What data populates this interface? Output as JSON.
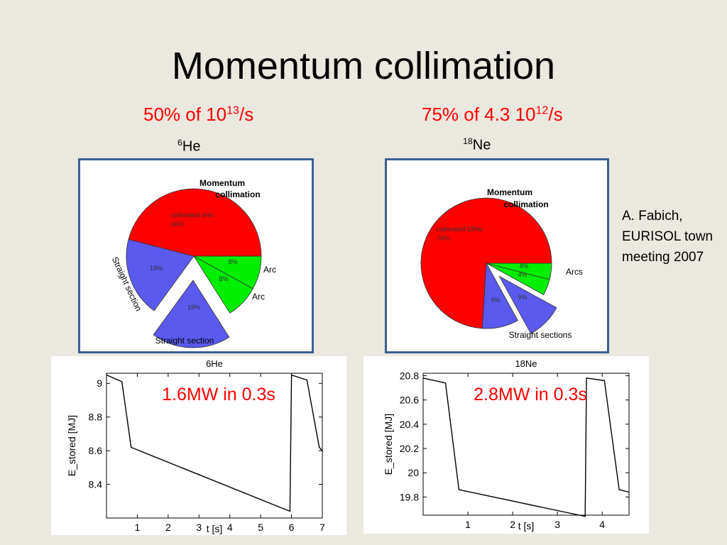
{
  "slide": {
    "title": "Momentum collimation",
    "left_header": {
      "pre": "50% of 10",
      "sup": "13",
      "post": "/s"
    },
    "right_header": {
      "pre": "75% of 4.3 10",
      "sup": "12",
      "post": "/s"
    },
    "left_nuclide": {
      "sup": "6",
      "name": "He"
    },
    "right_nuclide": {
      "sup": "18",
      "name": "Ne"
    },
    "credit": {
      "line1": "A.   Fabich,",
      "line2": "EURISOL town",
      "line3": "meeting 2007"
    },
    "colors": {
      "red": "#ff0000",
      "blue": "#5a5aee",
      "green": "#00ee00",
      "frame": "#3b5f93",
      "background": "#ebe8df"
    }
  },
  "chart_data": [
    {
      "type": "pie",
      "name": "6He losses",
      "title": "Momentum collimation",
      "slices": [
        {
          "label": "collimated 6He",
          "pct_label": "46%",
          "value": 46,
          "color": "#ff0000",
          "exploded": false
        },
        {
          "label": "",
          "pct_label": "8%",
          "value": 8,
          "color": "#00ee00",
          "exploded": false
        },
        {
          "label": "",
          "pct_label": "8%",
          "value": 8,
          "color": "#00ee00",
          "exploded": false
        },
        {
          "label": "",
          "pct_label": "19%",
          "value": 19,
          "color": "#5a5aee",
          "exploded": true
        },
        {
          "label": "",
          "pct_label": "19%",
          "value": 19,
          "color": "#5a5aee",
          "exploded": false
        }
      ],
      "annotations": [
        "Momentum",
        "collimation",
        "Arc",
        "Arc",
        "Straight section",
        "Straight section"
      ]
    },
    {
      "type": "pie",
      "name": "18Ne losses",
      "title": "Momentum collimation",
      "slices": [
        {
          "label": "collimated 18Ne",
          "pct_label": "74%",
          "value": 74,
          "color": "#ff0000",
          "exploded": false
        },
        {
          "label": "",
          "pct_label": "4%",
          "value": 4,
          "color": "#00ee00",
          "exploded": false
        },
        {
          "label": "",
          "pct_label": "4%",
          "value": 4,
          "color": "#00ee00",
          "exploded": false
        },
        {
          "label": "",
          "pct_label": "9%",
          "value": 9,
          "color": "#5a5aee",
          "exploded": true
        },
        {
          "label": "",
          "pct_label": "9%",
          "value": 9,
          "color": "#5a5aee",
          "exploded": false
        }
      ],
      "annotations": [
        "Momentum",
        "collimation",
        "Arcs",
        "Straight sections"
      ]
    },
    {
      "type": "line",
      "title": "6He",
      "xlabel": "t [s]",
      "ylabel": "E_stored [MJ]",
      "annotation": "1.6MW in 0.3s",
      "xlim": [
        0,
        7.0
      ],
      "ylim": [
        8.2,
        9.06
      ],
      "xticks": [
        1,
        2,
        3,
        4,
        5,
        6,
        7
      ],
      "yticks": [
        8.4,
        8.6,
        8.8,
        9
      ],
      "x": [
        0,
        0.5,
        0.8,
        5.95,
        5.95,
        6.0,
        6.5,
        6.9,
        7.0
      ],
      "y": [
        9.05,
        9.01,
        8.62,
        8.24,
        8.24,
        9.05,
        9.02,
        8.62,
        8.6
      ]
    },
    {
      "type": "line",
      "title": "18Ne",
      "xlabel": "t [s]",
      "ylabel": "E_stored [MJ]",
      "annotation": "2.8MW in 0.3s",
      "xlim": [
        0,
        4.6
      ],
      "ylim": [
        19.65,
        20.82
      ],
      "xticks": [
        1,
        2,
        3,
        4
      ],
      "yticks": [
        19.8,
        20,
        20.2,
        20.4,
        20.6,
        20.8
      ],
      "x": [
        0,
        0.5,
        0.8,
        3.62,
        3.62,
        3.65,
        4.05,
        4.38,
        4.6
      ],
      "y": [
        20.78,
        20.74,
        19.86,
        19.64,
        19.64,
        20.78,
        20.76,
        19.86,
        19.84
      ]
    }
  ]
}
